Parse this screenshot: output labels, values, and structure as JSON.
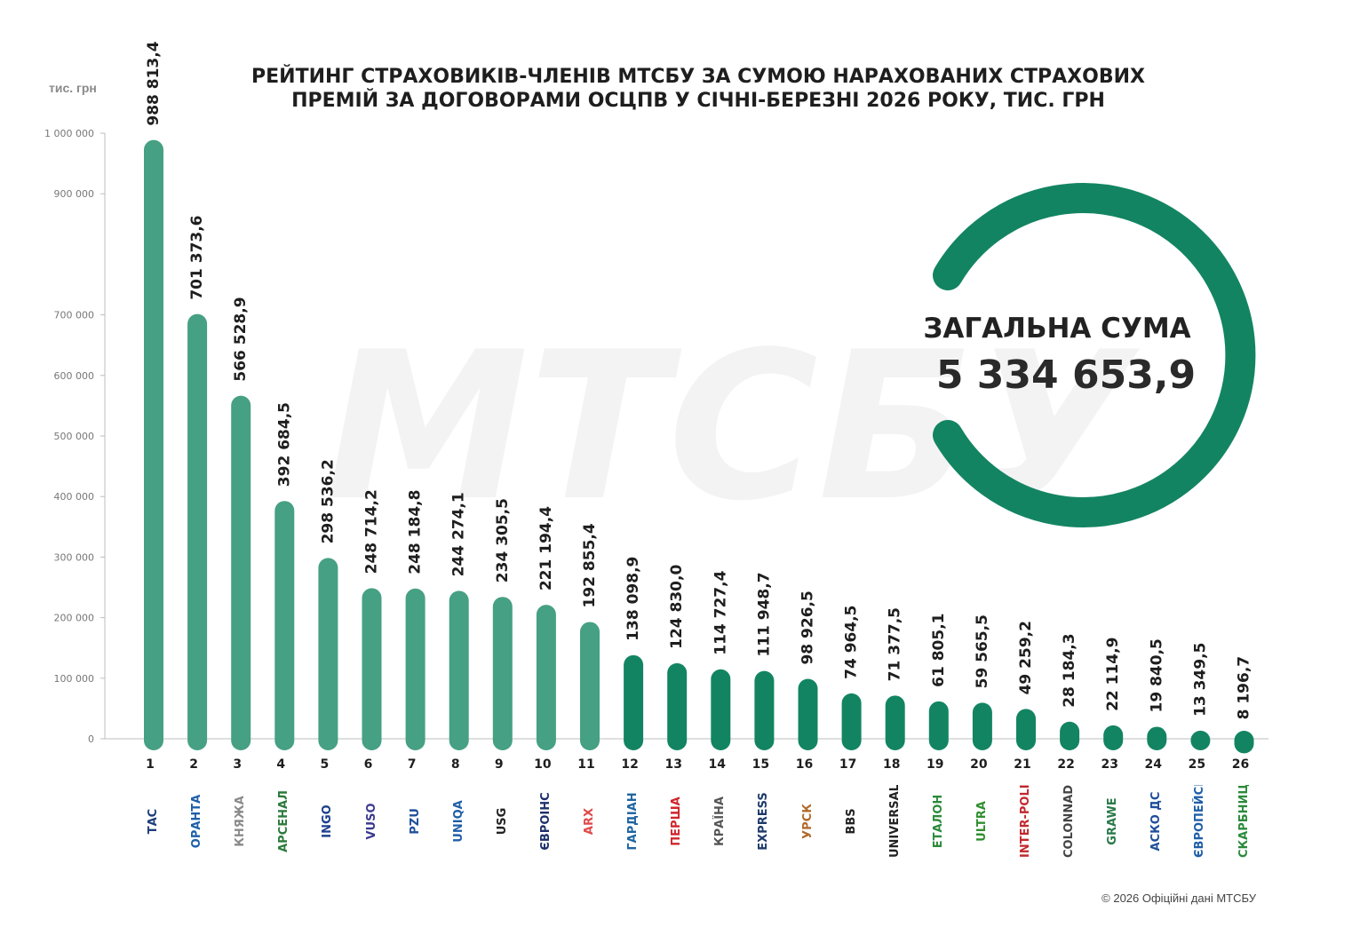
{
  "title_line1": "РЕЙТИНГ СТРАХОВИКІВ-ЧЛЕНІВ МТСБУ ЗА СУМОЮ НАРАХОВАНИХ СТРАХОВИХ",
  "title_line2": "ПРЕМІЙ ЗА ДОГОВОРАМИ ОСЦПВ У СІЧНІ-БЕРЕЗНІ 2026 РОКУ, ТИС. ГРН",
  "unit_label": "тис. грн",
  "total_label": "ЗАГАЛЬНА СУМА",
  "total_value": "5 334 653,9",
  "footer": "© 2026 Офіційні дані МТСБУ",
  "watermark": "МТСБУ",
  "colors": {
    "bar_light": "#46a083",
    "bar_dark": "#138462",
    "ring": "#138462",
    "axis": "#bdbdbd"
  },
  "chart_data": {
    "type": "bar",
    "categories": [
      "1",
      "2",
      "3",
      "4",
      "5",
      "6",
      "7",
      "8",
      "9",
      "10",
      "11",
      "12",
      "13",
      "14",
      "15",
      "16",
      "17",
      "18",
      "19",
      "20",
      "21",
      "22",
      "23",
      "24",
      "25",
      "26"
    ],
    "values": [
      988813.4,
      701373.6,
      566528.9,
      392684.5,
      298536.2,
      248714.2,
      248184.8,
      244274.1,
      234305.5,
      221194.4,
      192855.4,
      138098.9,
      124830.0,
      114727.4,
      111948.7,
      98926.5,
      74964.5,
      71377.5,
      61805.1,
      59565.5,
      49259.2,
      28184.3,
      22114.9,
      19840.5,
      13349.5,
      8196.7
    ],
    "value_labels": [
      "988 813,4",
      "701 373,6",
      "566 528,9",
      "392 684,5",
      "298 536,2",
      "248 714,2",
      "248 184,8",
      "244 274,1",
      "234 305,5",
      "221 194,4",
      "192 855,4",
      "138 098,9",
      "124 830,0",
      "114 727,4",
      "111 948,7",
      "98 926,5",
      "74 964,5",
      "71 377,5",
      "61 805,1",
      "59 565,5",
      "49 259,2",
      "28 184,3",
      "22 114,9",
      "19 840,5",
      "13 349,5",
      "8 196,7"
    ],
    "y_ticks": [
      0,
      100000,
      200000,
      300000,
      400000,
      500000,
      600000,
      700000,
      900000,
      1000000
    ],
    "y_tick_labels": [
      "0",
      "100 000",
      "200 000",
      "300 000",
      "400 000",
      "500 000",
      "600 000",
      "700 000",
      "900 000",
      "1 000 000"
    ],
    "ylim": [
      0,
      1000000
    ],
    "grid": false,
    "companies": [
      {
        "text": "ТАС",
        "color": "#1d3d7a"
      },
      {
        "text": "ОРАНТА",
        "color": "#1d5fa8"
      },
      {
        "text": "КНЯЖА",
        "color": "#8a8a8a"
      },
      {
        "text": "АРСЕНАЛ",
        "color": "#2a7a3a"
      },
      {
        "text": "INGO",
        "color": "#1b3f8b"
      },
      {
        "text": "VUSO",
        "color": "#3b3a8f"
      },
      {
        "text": "PZU",
        "color": "#1f4e9a"
      },
      {
        "text": "UNIQA",
        "color": "#1f5ea8"
      },
      {
        "text": "USG",
        "color": "#222222"
      },
      {
        "text": "ЄВРОІНС",
        "color": "#1d2f6b"
      },
      {
        "text": "ARX",
        "color": "#e04a4a"
      },
      {
        "text": "ГАРДІАН",
        "color": "#1e64a0"
      },
      {
        "text": "ПЕРША",
        "color": "#d0242a"
      },
      {
        "text": "КРАЇНА",
        "color": "#555555"
      },
      {
        "text": "EXPRESS",
        "color": "#1e3a6b"
      },
      {
        "text": "УРСК",
        "color": "#b06a2a"
      },
      {
        "text": "BBS",
        "color": "#222222"
      },
      {
        "text": "UNIVERSALNA",
        "color": "#222222"
      },
      {
        "text": "ЕТАЛОН",
        "color": "#2b8a3a"
      },
      {
        "text": "ULTRA",
        "color": "#2f8f2f"
      },
      {
        "text": "INTER-POLIS",
        "color": "#c0282d"
      },
      {
        "text": "COLONNADE",
        "color": "#444444"
      },
      {
        "text": "GRAWE",
        "color": "#2b7a4a"
      },
      {
        "text": "АСКО ДС",
        "color": "#1f4e9a"
      },
      {
        "text": "ЄВРОПЕЙСЬКИЙ",
        "color": "#1f5ea8"
      },
      {
        "text": "СКАРБНИЦЯ",
        "color": "#2b8a3a"
      }
    ]
  }
}
